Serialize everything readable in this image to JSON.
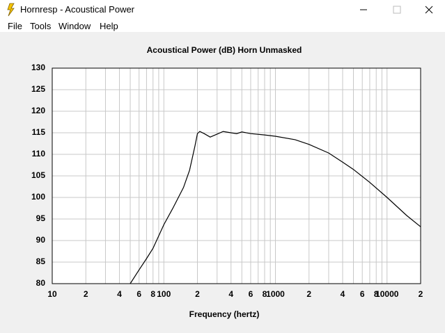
{
  "window": {
    "title": "Hornresp - Acoustical Power"
  },
  "menu": [
    "File",
    "Tools",
    "Window",
    "Help"
  ],
  "chart_data": {
    "type": "line",
    "title": "Acoustical Power (dB)   Horn   Unmasked",
    "x_label": "Frequency (hertz)",
    "x": [
      50,
      60,
      70,
      80,
      100,
      120,
      150,
      170,
      190,
      200,
      210,
      230,
      260,
      300,
      340,
      400,
      450,
      500,
      600,
      800,
      1000,
      1500,
      2000,
      3000,
      4000,
      5000,
      7000,
      10000,
      15000,
      20000
    ],
    "values": [
      80,
      83.2,
      85.8,
      88.2,
      93.7,
      97.4,
      102.3,
      106.3,
      111.9,
      114.8,
      115.3,
      114.8,
      114.0,
      114.7,
      115.3,
      115.0,
      114.8,
      115.2,
      114.8,
      114.5,
      114.2,
      113.4,
      112.3,
      110.3,
      108.2,
      106.5,
      103.5,
      100.0,
      95.8,
      93.2
    ],
    "color": "#000000",
    "x_log": true,
    "xlim": [
      10,
      20000
    ],
    "ylim": [
      80,
      130
    ],
    "xticks": [
      10,
      {
        "value": 20,
        "label": "2"
      },
      {
        "value": 40,
        "label": "4"
      },
      {
        "value": 60,
        "label": "6"
      },
      {
        "value": 80,
        "label": "8"
      },
      100,
      {
        "value": 200,
        "label": "2"
      },
      {
        "value": 400,
        "label": "4"
      },
      {
        "value": 600,
        "label": "6"
      },
      {
        "value": 800,
        "label": "8"
      },
      1000,
      {
        "value": 2000,
        "label": "2"
      },
      {
        "value": 4000,
        "label": "4"
      },
      {
        "value": 6000,
        "label": "6"
      },
      {
        "value": 8000,
        "label": "8"
      },
      10000,
      {
        "value": 20000,
        "label": "2"
      }
    ],
    "x_minor_grid": [
      30,
      50,
      70,
      90,
      300,
      500,
      700,
      900,
      3000,
      5000,
      7000,
      9000
    ],
    "yticks": [
      80,
      85,
      90,
      95,
      100,
      105,
      110,
      115,
      120,
      125,
      130
    ],
    "grid": true
  }
}
